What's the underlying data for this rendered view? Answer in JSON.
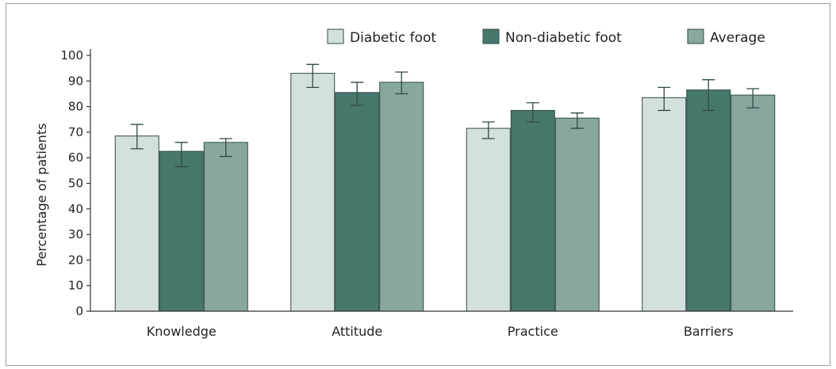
{
  "chart_data": {
    "type": "bar",
    "title": "",
    "xlabel": "",
    "ylabel": "Percentage of patients",
    "ylim": [
      0,
      100
    ],
    "yticks": [
      0,
      10,
      20,
      30,
      40,
      50,
      60,
      70,
      80,
      90,
      100
    ],
    "grid": false,
    "legend_position": "top",
    "categories": [
      "Knowledge",
      "Attitude",
      "Practice",
      "Barriers"
    ],
    "series": [
      {
        "name": "Diabetic foot",
        "color": "#d3e0dd",
        "values": [
          68.5,
          93,
          71.5,
          83.5
        ],
        "error": [
          [
            63.5,
            73
          ],
          [
            87.5,
            96.5
          ],
          [
            67.5,
            74
          ],
          [
            78.5,
            87.5
          ]
        ]
      },
      {
        "name": "Non-diabetic foot",
        "color": "#47786e",
        "values": [
          62.5,
          85.5,
          78.5,
          86.5
        ],
        "error": [
          [
            56.5,
            66
          ],
          [
            80.5,
            89.5
          ],
          [
            74,
            81.5
          ],
          [
            78.5,
            90.5
          ]
        ]
      },
      {
        "name": "Average",
        "color": "#88a89f",
        "values": [
          66,
          89.5,
          75.5,
          84.5
        ],
        "error": [
          [
            60.5,
            67.5
          ],
          [
            85,
            93.5
          ],
          [
            71.5,
            77.5
          ],
          [
            79.5,
            87
          ]
        ]
      }
    ]
  }
}
